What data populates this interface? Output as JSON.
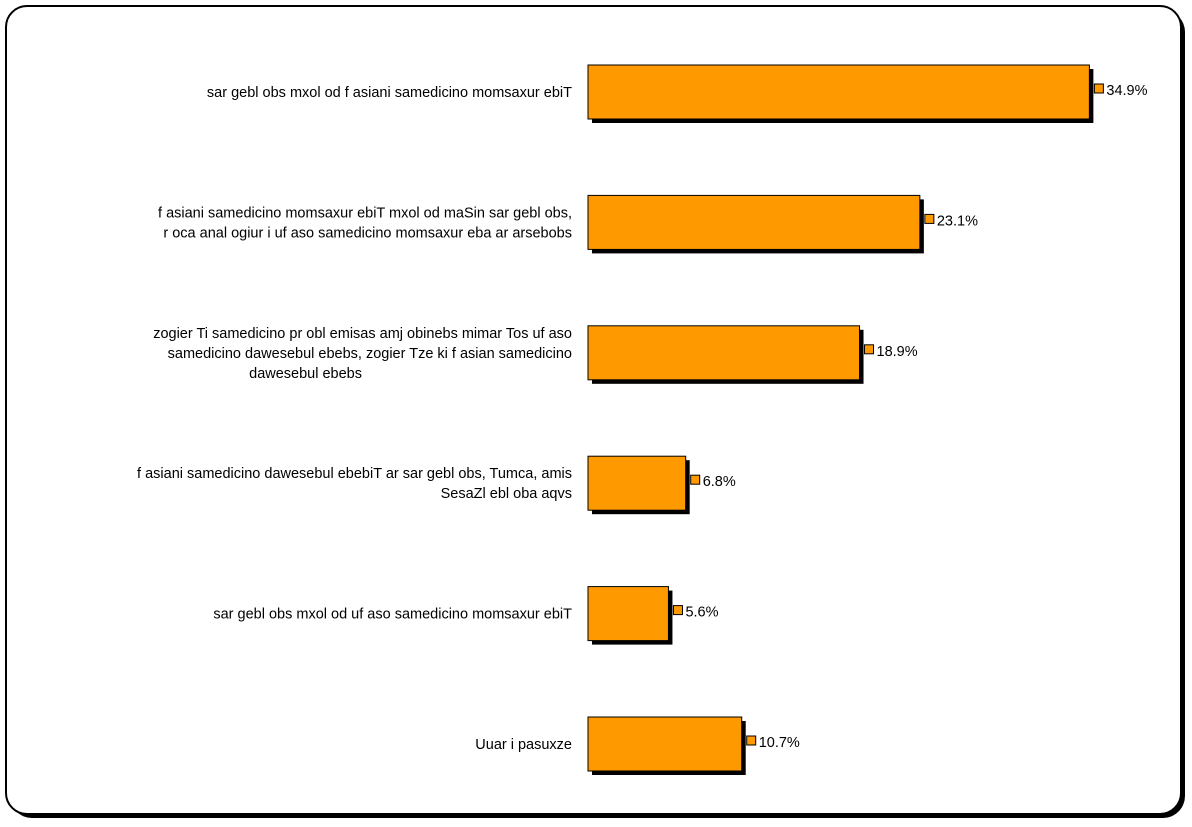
{
  "chart_data": {
    "type": "bar",
    "orientation": "horizontal",
    "categories": [
      [
        "sar gebl obs mxol od f asiani samedicino momsaxur ebiT"
      ],
      [
        "f asiani samedicino momsaxur ebiT mxol od maSin sar gebl obs,",
        "r oca anal ogiur i uf aso samedicino momsaxur eba ar arsebobs"
      ],
      [
        "zogier Ti samedicino pr obl emisas amj obinebs mimar Tos uf aso",
        "samedicino dawesebul ebebs, zogier Tze ki f asian samedicino",
        "dawesebul ebebs"
      ],
      [
        "f asiani samedicino dawesebul ebebiT ar sar gebl obs, Tumca, amis",
        "SesaZl ebl oba aqvs"
      ],
      [
        "sar gebl obs mxol od uf aso samedicino momsaxur ebiT"
      ],
      [
        "Uuar i pasuxze"
      ]
    ],
    "values": [
      34.9,
      23.1,
      18.9,
      6.8,
      5.6,
      10.7
    ],
    "value_labels": [
      "34.9%",
      "23.1%",
      "18.9%",
      "6.8%",
      "5.6%",
      "10.7%"
    ],
    "xlim": [
      0,
      35.5
    ],
    "grid": false,
    "legend": "none",
    "colors": {
      "bar_fill": "#FF9900",
      "bar_shadow": "#000000",
      "marker_fill": "#FF9900",
      "frame": "#000000"
    }
  }
}
